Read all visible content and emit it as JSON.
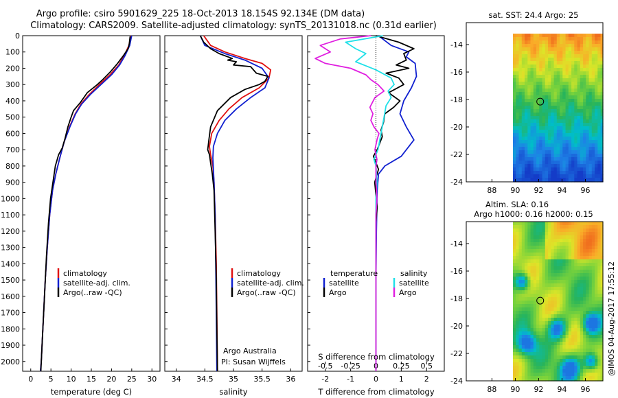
{
  "header": {
    "line1": "Argo profile: csiro 5901629_225 18-Oct-2013 18.154S 92.134E (DM data)",
    "line2": "Climatology: CARS2009. Satellite-adjusted climatology: synTS_20131018.nc (0.31d earlier)"
  },
  "colors": {
    "climatology": "#e01010",
    "satellite": "#1020d0",
    "argo": "#000000",
    "satellite_salinity": "#20e0e8",
    "argo_salinity": "#e020e0"
  },
  "footer": {
    "timestamp": "@IMOS 04-Aug-2017 17:55:12"
  },
  "chart_data": [
    {
      "id": "temperature",
      "type": "line",
      "xlabel": "temperature (deg C)",
      "ylabel": "",
      "xlim": [
        -2,
        32
      ],
      "ylim": [
        2060,
        0
      ],
      "xticks": [
        0,
        5,
        10,
        15,
        20,
        25,
        30
      ],
      "yticks": [
        0,
        100,
        200,
        300,
        400,
        500,
        600,
        700,
        800,
        900,
        1000,
        1100,
        1200,
        1300,
        1400,
        1500,
        1600,
        1700,
        1800,
        1900,
        2000
      ],
      "legend": [
        "climatology",
        "satellite-adj. clim.",
        "Argo(..raw -QC)"
      ],
      "legend_position": "lower-center",
      "series": [
        {
          "name": "climatology",
          "color_key": "climatology",
          "points": [
            [
              24.8,
              0
            ],
            [
              24.3,
              60
            ],
            [
              23.2,
              120
            ],
            [
              21.8,
              180
            ],
            [
              19.6,
              240
            ],
            [
              17,
              300
            ],
            [
              14.5,
              360
            ],
            [
              12.4,
              420
            ],
            [
              11,
              480
            ],
            [
              9.6,
              560
            ],
            [
              8.3,
              650
            ],
            [
              7.2,
              750
            ],
            [
              6.2,
              850
            ],
            [
              5.4,
              950
            ],
            [
              4.7,
              1100
            ],
            [
              4.1,
              1300
            ],
            [
              3.6,
              1500
            ],
            [
              3.1,
              1750
            ],
            [
              2.6,
              2000
            ],
            [
              2.4,
              2060
            ]
          ]
        },
        {
          "name": "satellite-adj. clim.",
          "color_key": "satellite",
          "points": [
            [
              25,
              0
            ],
            [
              24.5,
              60
            ],
            [
              23.4,
              120
            ],
            [
              22,
              180
            ],
            [
              20,
              240
            ],
            [
              17.4,
              300
            ],
            [
              14.8,
              360
            ],
            [
              12.6,
              420
            ],
            [
              11.1,
              480
            ],
            [
              9.7,
              560
            ],
            [
              8.3,
              650
            ],
            [
              7.2,
              750
            ],
            [
              6.2,
              850
            ],
            [
              5.4,
              950
            ],
            [
              4.7,
              1100
            ],
            [
              4.1,
              1300
            ],
            [
              3.6,
              1500
            ],
            [
              3.1,
              1750
            ],
            [
              2.6,
              2000
            ],
            [
              2.4,
              2060
            ]
          ]
        },
        {
          "name": "Argo(..raw -QC)",
          "color_key": "argo",
          "points": [
            [
              24.6,
              5
            ],
            [
              24.4,
              50
            ],
            [
              24.1,
              80
            ],
            [
              23,
              120
            ],
            [
              21.5,
              170
            ],
            [
              19.8,
              220
            ],
            [
              17.8,
              270
            ],
            [
              16.5,
              300
            ],
            [
              14,
              350
            ],
            [
              12.3,
              410
            ],
            [
              10.6,
              460
            ],
            [
              10,
              500
            ],
            [
              9.2,
              560
            ],
            [
              8.5,
              630
            ],
            [
              7.8,
              690
            ],
            [
              6.9,
              730
            ],
            [
              6.1,
              800
            ],
            [
              5.5,
              900
            ],
            [
              4.9,
              1000
            ],
            [
              4.4,
              1150
            ],
            [
              3.9,
              1350
            ],
            [
              3.4,
              1600
            ],
            [
              2.9,
              1850
            ],
            [
              2.5,
              2060
            ]
          ]
        }
      ]
    },
    {
      "id": "salinity",
      "type": "line",
      "xlabel": "salinity",
      "ylabel": "",
      "xlim": [
        33.8,
        36.2
      ],
      "ylim": [
        2060,
        0
      ],
      "xticks": [
        34,
        34.5,
        35,
        35.5,
        36
      ],
      "yticks": [],
      "legend": [
        "climatology",
        "satellite-adj. clim.",
        "Argo(..raw -QC)"
      ],
      "legend_position": "lower-right",
      "annotations": [
        "Argo Australia",
        "PI: Susan Wijffels"
      ],
      "series": [
        {
          "name": "climatology",
          "color_key": "climatology",
          "points": [
            [
              34.48,
              0
            ],
            [
              34.6,
              60
            ],
            [
              34.85,
              100
            ],
            [
              35.2,
              140
            ],
            [
              35.5,
              170
            ],
            [
              35.65,
              210
            ],
            [
              35.62,
              260
            ],
            [
              35.45,
              320
            ],
            [
              35.15,
              380
            ],
            [
              34.92,
              450
            ],
            [
              34.75,
              520
            ],
            [
              34.62,
              600
            ],
            [
              34.58,
              680
            ],
            [
              34.6,
              730
            ],
            [
              34.64,
              800
            ],
            [
              34.66,
              900
            ],
            [
              34.68,
              1100
            ],
            [
              34.7,
              1400
            ],
            [
              34.71,
              1700
            ],
            [
              34.72,
              2060
            ]
          ]
        },
        {
          "name": "satellite-adj. clim.",
          "color_key": "satellite",
          "points": [
            [
              34.42,
              0
            ],
            [
              34.5,
              60
            ],
            [
              34.85,
              110
            ],
            [
              35.2,
              150
            ],
            [
              35.5,
              200
            ],
            [
              35.62,
              260
            ],
            [
              35.55,
              320
            ],
            [
              35.3,
              380
            ],
            [
              35.05,
              450
            ],
            [
              34.85,
              520
            ],
            [
              34.72,
              600
            ],
            [
              34.65,
              680
            ],
            [
              34.64,
              750
            ],
            [
              34.65,
              820
            ],
            [
              34.66,
              900
            ],
            [
              34.68,
              1100
            ],
            [
              34.69,
              1400
            ],
            [
              34.7,
              1700
            ],
            [
              34.71,
              2060
            ]
          ]
        },
        {
          "name": "Argo(..raw -QC)",
          "color_key": "argo",
          "points": [
            [
              34.42,
              0
            ],
            [
              34.48,
              40
            ],
            [
              34.6,
              80
            ],
            [
              34.75,
              110
            ],
            [
              34.98,
              140
            ],
            [
              34.9,
              150
            ],
            [
              35.05,
              160
            ],
            [
              35.0,
              180
            ],
            [
              35.3,
              190
            ],
            [
              35.4,
              230
            ],
            [
              35.6,
              250
            ],
            [
              35.55,
              280
            ],
            [
              35.45,
              300
            ],
            [
              35.2,
              330
            ],
            [
              34.95,
              380
            ],
            [
              34.72,
              460
            ],
            [
              34.6,
              560
            ],
            [
              34.57,
              640
            ],
            [
              34.55,
              700
            ],
            [
              34.58,
              730
            ],
            [
              34.6,
              780
            ],
            [
              34.63,
              850
            ],
            [
              34.66,
              950
            ],
            [
              34.68,
              1200
            ],
            [
              34.7,
              1500
            ],
            [
              34.71,
              1800
            ],
            [
              34.72,
              2060
            ]
          ]
        }
      ]
    },
    {
      "id": "difference",
      "type": "line",
      "xlabel": "T difference from climatology",
      "x2label": "S difference from climatology",
      "ylabel": "",
      "xlim": [
        -2.7,
        2.7
      ],
      "x2lim": [
        -0.675,
        0.675
      ],
      "ylim": [
        2060,
        0
      ],
      "xticks": [
        -2,
        -1,
        0,
        1,
        2
      ],
      "x2ticks": [
        -0.5,
        -0.25,
        0,
        0.25,
        0.5
      ],
      "x2ticklabels": [
        "-0.5",
        "-0.25",
        "0",
        "0.25",
        "0.5"
      ],
      "legend_groups": [
        {
          "title": "temperature",
          "items": [
            "satellite",
            "Argo"
          ]
        },
        {
          "title": "salinity",
          "items": [
            "satellite",
            "Argo"
          ]
        }
      ],
      "legend_position": "lower-center",
      "series": [
        {
          "name": "temperature satellite",
          "color_key": "satellite",
          "axis": "T",
          "points": [
            [
              0.1,
              0
            ],
            [
              0.6,
              60
            ],
            [
              1.3,
              100
            ],
            [
              1.2,
              130
            ],
            [
              1.55,
              170
            ],
            [
              1.6,
              250
            ],
            [
              1.4,
              320
            ],
            [
              1.1,
              400
            ],
            [
              0.95,
              480
            ],
            [
              1.2,
              560
            ],
            [
              1.5,
              640
            ],
            [
              1.0,
              740
            ],
            [
              0.35,
              800
            ],
            [
              0.1,
              850
            ],
            [
              0.05,
              950
            ],
            [
              0.02,
              1200
            ],
            [
              0,
              1500
            ],
            [
              0,
              2060
            ]
          ]
        },
        {
          "name": "temperature Argo",
          "color_key": "argo",
          "axis": "T",
          "points": [
            [
              0,
              0
            ],
            [
              0.9,
              40
            ],
            [
              1.5,
              80
            ],
            [
              1.1,
              110
            ],
            [
              1.2,
              150
            ],
            [
              0.8,
              180
            ],
            [
              1.3,
              200
            ],
            [
              0.4,
              230
            ],
            [
              0.9,
              260
            ],
            [
              1.1,
              300
            ],
            [
              0.5,
              350
            ],
            [
              0.95,
              400
            ],
            [
              0.7,
              440
            ],
            [
              0.35,
              480
            ],
            [
              0.3,
              530
            ],
            [
              0.2,
              580
            ],
            [
              0.25,
              620
            ],
            [
              0.05,
              700
            ],
            [
              -0.1,
              740
            ],
            [
              0,
              780
            ],
            [
              0.1,
              820
            ],
            [
              -0.05,
              900
            ],
            [
              0,
              980
            ],
            [
              0.05,
              1050
            ],
            [
              0,
              1150
            ],
            [
              0,
              2060
            ]
          ]
        },
        {
          "name": "salinity satellite",
          "color_key": "satellite_salinity",
          "axis": "S",
          "points": [
            [
              0.07,
              0
            ],
            [
              -0.3,
              40
            ],
            [
              -0.2,
              80
            ],
            [
              -0.1,
              110
            ],
            [
              -0.2,
              160
            ],
            [
              0.0,
              210
            ],
            [
              0.15,
              260
            ],
            [
              0.18,
              300
            ],
            [
              0.12,
              340
            ],
            [
              0.15,
              380
            ],
            [
              0.1,
              430
            ],
            [
              0.08,
              500
            ],
            [
              0.05,
              600
            ],
            [
              0.02,
              700
            ],
            [
              -0.02,
              760
            ],
            [
              0,
              800
            ],
            [
              0.01,
              900
            ],
            [
              0,
              1000
            ],
            [
              0,
              2060
            ]
          ]
        },
        {
          "name": "salinity Argo",
          "color_key": "argo_salinity",
          "axis": "S",
          "points": [
            [
              -0.05,
              0
            ],
            [
              -0.35,
              20
            ],
            [
              -0.55,
              60
            ],
            [
              -0.45,
              100
            ],
            [
              -0.6,
              140
            ],
            [
              -0.5,
              170
            ],
            [
              -0.25,
              200
            ],
            [
              -0.1,
              240
            ],
            [
              -0.05,
              270
            ],
            [
              0.02,
              300
            ],
            [
              0.08,
              340
            ],
            [
              -0.01,
              380
            ],
            [
              -0.06,
              440
            ],
            [
              -0.03,
              480
            ],
            [
              -0.05,
              520
            ],
            [
              -0.02,
              560
            ],
            [
              0.03,
              600
            ],
            [
              0.01,
              640
            ],
            [
              -0.01,
              700
            ],
            [
              0.01,
              760
            ],
            [
              0,
              800
            ],
            [
              0,
              900
            ],
            [
              0.01,
              1000
            ],
            [
              0,
              1100
            ],
            [
              0,
              1500
            ],
            [
              0,
              2060
            ]
          ]
        }
      ]
    },
    {
      "id": "sst-map",
      "type": "heatmap",
      "title": "sat. SST: 24.4  Argo: 25",
      "xlabel": "",
      "ylabel": "",
      "xlim": [
        85.8,
        97.5
      ],
      "ylim": [
        -24,
        -12.4
      ],
      "xticks": [
        88,
        90,
        92,
        94,
        96
      ],
      "yticks": [
        -14,
        -16,
        -18,
        -20,
        -22,
        -24
      ],
      "marker": {
        "x": 92.134,
        "y": -18.154
      }
    },
    {
      "id": "sla-map",
      "type": "heatmap",
      "title": "Altim. SLA: 0.16",
      "subtitle": "Argo h1000: 0.16 h2000: 0.15",
      "xlabel": "",
      "ylabel": "",
      "xlim": [
        85.8,
        97.5
      ],
      "ylim": [
        -24,
        -12.4
      ],
      "xticks": [
        88,
        90,
        92,
        94,
        96
      ],
      "yticks": [
        -14,
        -16,
        -18,
        -20,
        -22,
        -24
      ],
      "marker": {
        "x": 92.134,
        "y": -18.154
      }
    }
  ]
}
